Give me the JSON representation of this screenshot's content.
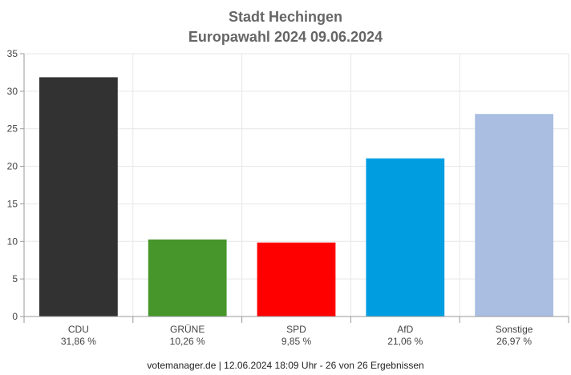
{
  "chart_data": {
    "type": "bar",
    "title": "Stadt Hechingen",
    "subtitle": "Europawahl 2024 09.06.2024",
    "categories": [
      "CDU",
      "GRÜNE",
      "SPD",
      "AfD",
      "Sonstige"
    ],
    "value_labels": [
      "31,86 %",
      "10,26 %",
      "9,85 %",
      "21,06 %",
      "26,97 %"
    ],
    "values": [
      31.86,
      10.26,
      9.85,
      21.06,
      26.97
    ],
    "colors": [
      "#323232",
      "#46962b",
      "#ff0000",
      "#009ee0",
      "#aabee2"
    ],
    "xlabel": "",
    "ylabel": "",
    "ylim": [
      0,
      35
    ],
    "yticks": [
      0,
      5,
      10,
      15,
      20,
      25,
      30,
      35
    ],
    "grid": true,
    "legend": "none"
  },
  "footer": "votemanager.de | 12.06.2024 18:09 Uhr - 26 von 26 Ergebnissen"
}
